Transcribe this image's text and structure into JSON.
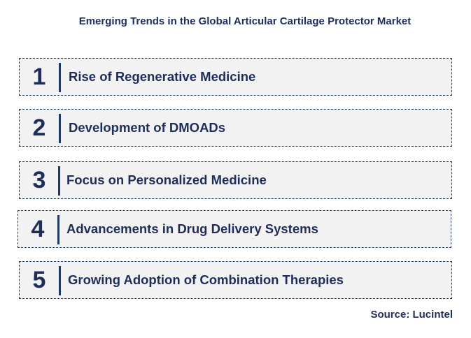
{
  "title": "Emerging Trends in the Global Articular Cartilage Protector Market",
  "trends": [
    {
      "number": "1",
      "label": "Rise of Regenerative Medicine"
    },
    {
      "number": "2",
      "label": "Development of DMOADs"
    },
    {
      "number": "3",
      "label": "Focus on Personalized Medicine"
    },
    {
      "number": "4",
      "label": "Advancements in Drug Delivery Systems"
    },
    {
      "number": "5",
      "label": "Growing Adoption of Combination Therapies"
    }
  ],
  "source": "Source: Lucintel",
  "colors": {
    "text": "#1f2d5a",
    "border": "#1f3864",
    "box_fill": "#f2f2f2"
  }
}
